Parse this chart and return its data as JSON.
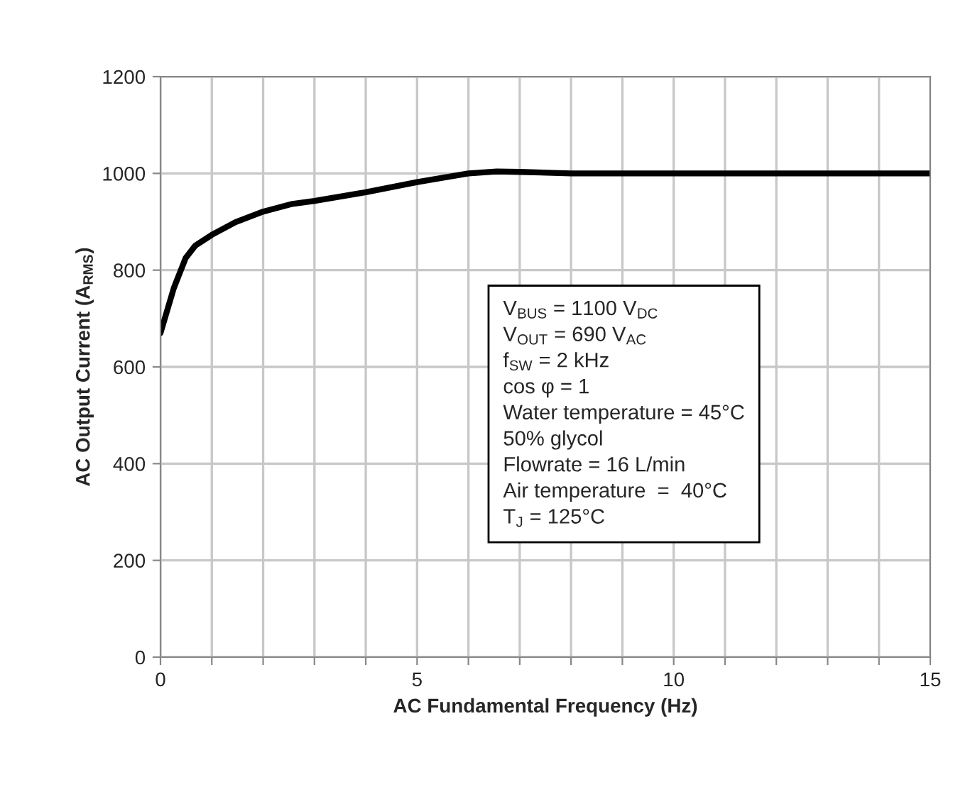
{
  "chart_data": {
    "type": "line",
    "xlabel": "AC Fundamental Frequency (Hz)",
    "ylabel": "AC Output Current (A$_{RMS}$)",
    "x": [
      0,
      0.26,
      0.49,
      0.68,
      1.0,
      1.46,
      2.0,
      2.57,
      3.0,
      4.0,
      5.0,
      6.0,
      6.55,
      7.0,
      8.0,
      9.0,
      10.0,
      11.0,
      12.0,
      13.0,
      14.0,
      15.0
    ],
    "series": [
      {
        "color": "#000000",
        "values": [
          670,
          763,
          825,
          851,
          873,
          899,
          921,
          937,
          943,
          961,
          982,
          1000,
          1004,
          1003,
          1000,
          1000,
          1000,
          1000,
          1000,
          1000,
          1000,
          1000
        ]
      }
    ],
    "xlim": [
      0,
      15
    ],
    "xticks": [
      0,
      {
        "value": 1,
        "label": null
      },
      {
        "value": 2,
        "label": null
      },
      {
        "value": 3,
        "label": null
      },
      {
        "value": 4,
        "label": null
      },
      5,
      {
        "value": 6,
        "label": null
      },
      {
        "value": 7,
        "label": null
      },
      {
        "value": 8,
        "label": null
      },
      {
        "value": 9,
        "label": null
      },
      10,
      {
        "value": 11,
        "label": null
      },
      {
        "value": 12,
        "label": null
      },
      {
        "value": 13,
        "label": null
      },
      {
        "value": 14,
        "label": null
      },
      15
    ],
    "ylim": [
      0,
      1200
    ],
    "yticks": [
      0,
      200,
      400,
      600,
      800,
      1000,
      1200
    ],
    "grid": true,
    "marker": "none",
    "line_style": "solid",
    "annotations": [
      "V$_{BUS}$ = 1100 V$_{DC}$\nV$_{OUT}$ = 690 V$_{AC}$\nf$_{SW}$ = 2 kHz\ncos φ = 1\nWater temperature = 45°C\n50% glycol\nFlowrate = 16 L/min\nAir temperature  =  40°C\nT$_{J}$ = 125°C"
    ]
  }
}
